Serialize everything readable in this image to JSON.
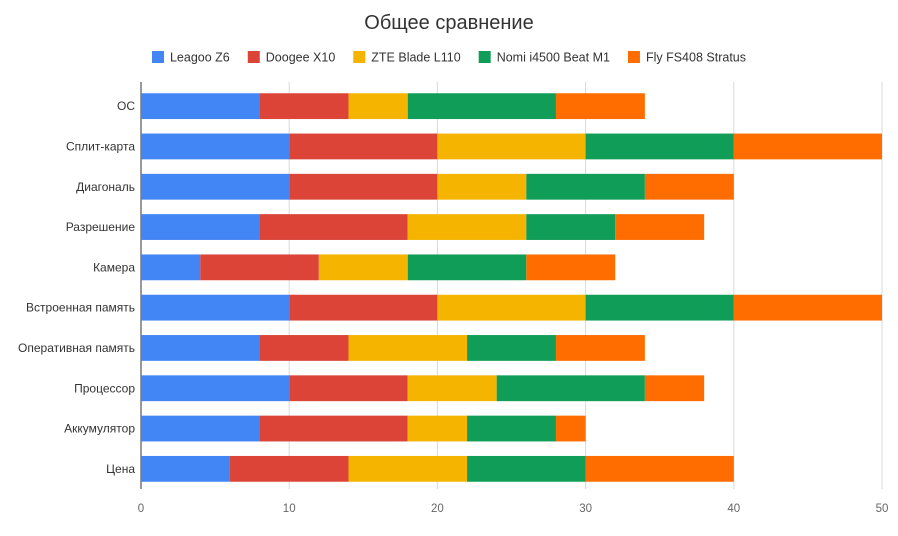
{
  "chart_data": {
    "type": "bar",
    "orientation": "horizontal",
    "stacked": true,
    "title": "Общее сравнение",
    "xlabel": "",
    "ylabel": "",
    "xlim": [
      0,
      50
    ],
    "x_ticks": [
      0,
      10,
      20,
      30,
      40,
      50
    ],
    "grid": true,
    "legend_position": "top",
    "categories": [
      "ОС",
      "Сплит-карта",
      "Диагональ",
      "Разрешение",
      "Камера",
      "Встроенная память",
      "Оперативная память",
      "Процессор",
      "Аккумулятор",
      "Цена"
    ],
    "series": [
      {
        "name": "Leagoo Z6",
        "color": "#4285f4",
        "values": [
          8,
          10,
          10,
          8,
          4,
          10,
          8,
          10,
          8,
          6
        ]
      },
      {
        "name": "Doogee X10",
        "color": "#db4437",
        "values": [
          6,
          10,
          10,
          10,
          8,
          10,
          6,
          8,
          10,
          8
        ]
      },
      {
        "name": "ZTE Blade L110",
        "color": "#f4b400",
        "values": [
          4,
          10,
          6,
          8,
          6,
          10,
          8,
          6,
          4,
          8
        ]
      },
      {
        "name": "Nomi i4500 Beat M1",
        "color": "#0f9d58",
        "values": [
          10,
          10,
          8,
          6,
          8,
          10,
          6,
          10,
          6,
          8
        ]
      },
      {
        "name": "Fly FS408 Stratus",
        "color": "#ff6d01",
        "values": [
          6,
          10,
          6,
          6,
          6,
          10,
          6,
          4,
          2,
          10
        ]
      }
    ]
  }
}
